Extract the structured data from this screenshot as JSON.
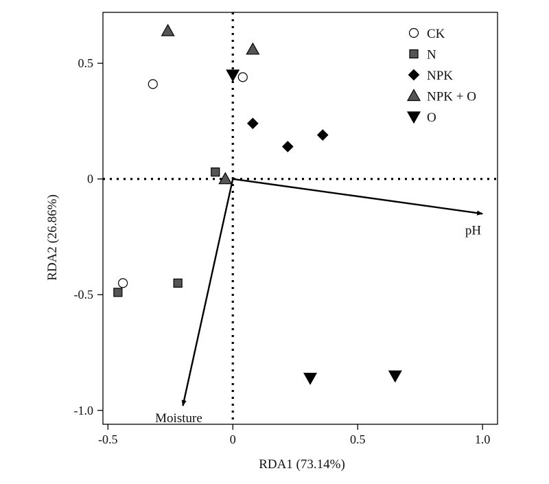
{
  "chart_data": {
    "type": "scatter",
    "title": "",
    "xlabel": "RDA1 (73.14%)",
    "ylabel": "RDA2 (26.86%)",
    "xlim": [
      -0.52,
      1.06
    ],
    "ylim": [
      -1.06,
      0.72
    ],
    "xticks": [
      {
        "value": -0.5,
        "label": "-0.5"
      },
      {
        "value": 0,
        "label": "0"
      },
      {
        "value": 0.5,
        "label": "0.5"
      },
      {
        "value": 1.0,
        "label": "1.0"
      }
    ],
    "yticks": [
      {
        "value": 0.5,
        "label": "0.5"
      },
      {
        "value": 0,
        "label": "0"
      },
      {
        "value": -0.5,
        "label": "-0.5"
      },
      {
        "value": -1.0,
        "label": "-1.0"
      }
    ],
    "grid": false,
    "zero_lines": "dotted",
    "legend_position": "top-right",
    "series": [
      {
        "name": "CK",
        "marker": "circle-open",
        "color": "#ffffff",
        "points": [
          [
            -0.32,
            0.41
          ],
          [
            0.04,
            0.44
          ],
          [
            -0.44,
            -0.45
          ]
        ]
      },
      {
        "name": "N",
        "marker": "square",
        "color": "#555555",
        "points": [
          [
            -0.07,
            0.03
          ],
          [
            -0.22,
            -0.45
          ],
          [
            -0.46,
            -0.49
          ]
        ]
      },
      {
        "name": "NPK",
        "marker": "diamond",
        "color": "#000000",
        "points": [
          [
            0.08,
            0.24
          ],
          [
            0.22,
            0.14
          ],
          [
            0.36,
            0.19
          ]
        ]
      },
      {
        "name": "NPK + O",
        "marker": "triangle-up",
        "color": "#555555",
        "points": [
          [
            -0.26,
            0.64
          ],
          [
            0.08,
            0.56
          ],
          [
            -0.03,
            -0.0
          ]
        ]
      },
      {
        "name": "O",
        "marker": "triangle-down",
        "color": "#000000",
        "points": [
          [
            0.0,
            0.45
          ],
          [
            0.31,
            -0.86
          ],
          [
            0.65,
            -0.85
          ]
        ]
      }
    ],
    "vectors": [
      {
        "label": "pH",
        "from": [
          0,
          0
        ],
        "to": [
          1.0,
          -0.15
        ]
      },
      {
        "label": "Moisture",
        "from": [
          0,
          0
        ],
        "to": [
          -0.2,
          -0.98
        ]
      }
    ]
  }
}
